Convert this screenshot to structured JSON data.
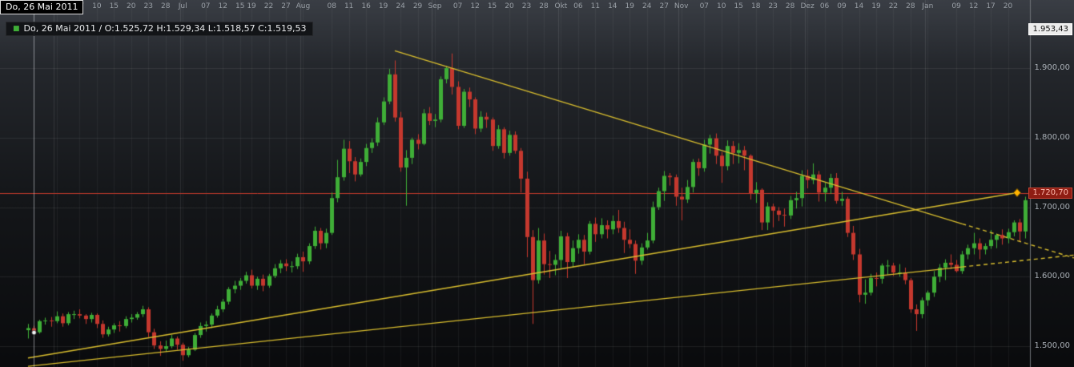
{
  "header": {
    "tooltip_date": "Do, 26 Mai 2011",
    "info_marker": "■",
    "info_text": "Do, 26 Mai 2011 / O:1.525,72 H:1.529,34 L:1.518,57 C:1.519,53"
  },
  "chart_data": {
    "type": "candlestick",
    "title": "",
    "grid": true,
    "view_price_range": [
      1470,
      1998
    ],
    "price_axis": {
      "labels": [
        {
          "v": 1900,
          "t": "1.900,00"
        },
        {
          "v": 1800,
          "t": "1.800,00"
        },
        {
          "v": 1700,
          "t": "1.700,00"
        },
        {
          "v": 1600,
          "t": "1.600,00"
        },
        {
          "v": 1500,
          "t": "1.500,00"
        }
      ]
    },
    "time_axis": {
      "month_start_indices": [
        5,
        27,
        48,
        71,
        93,
        114,
        136,
        157
      ],
      "labels": [
        {
          "i": 5,
          "t": "Jun"
        },
        {
          "i": 9,
          "t": "07"
        },
        {
          "i": 12,
          "t": "10"
        },
        {
          "i": 15,
          "t": "15"
        },
        {
          "i": 18,
          "t": "20"
        },
        {
          "i": 21,
          "t": "23"
        },
        {
          "i": 24,
          "t": "28"
        },
        {
          "i": 27,
          "t": "Jul"
        },
        {
          "i": 31,
          "t": "07"
        },
        {
          "i": 34,
          "t": "12"
        },
        {
          "i": 37,
          "t": "15"
        },
        {
          "i": 39,
          "t": "19"
        },
        {
          "i": 42,
          "t": "22"
        },
        {
          "i": 45,
          "t": "27"
        },
        {
          "i": 48,
          "t": "Aug"
        },
        {
          "i": 53,
          "t": "08"
        },
        {
          "i": 56,
          "t": "11"
        },
        {
          "i": 59,
          "t": "16"
        },
        {
          "i": 62,
          "t": "19"
        },
        {
          "i": 65,
          "t": "24"
        },
        {
          "i": 68,
          "t": "29"
        },
        {
          "i": 71,
          "t": "Sep"
        },
        {
          "i": 75,
          "t": "07"
        },
        {
          "i": 78,
          "t": "12"
        },
        {
          "i": 81,
          "t": "15"
        },
        {
          "i": 84,
          "t": "20"
        },
        {
          "i": 87,
          "t": "23"
        },
        {
          "i": 90,
          "t": "28"
        },
        {
          "i": 93,
          "t": "Okt"
        },
        {
          "i": 96,
          "t": "06"
        },
        {
          "i": 99,
          "t": "11"
        },
        {
          "i": 102,
          "t": "14"
        },
        {
          "i": 105,
          "t": "19"
        },
        {
          "i": 108,
          "t": "24"
        },
        {
          "i": 111,
          "t": "27"
        },
        {
          "i": 114,
          "t": "Nov"
        },
        {
          "i": 118,
          "t": "07"
        },
        {
          "i": 121,
          "t": "10"
        },
        {
          "i": 124,
          "t": "15"
        },
        {
          "i": 127,
          "t": "18"
        },
        {
          "i": 130,
          "t": "23"
        },
        {
          "i": 133,
          "t": "28"
        },
        {
          "i": 136,
          "t": "Dez"
        },
        {
          "i": 139,
          "t": "06"
        },
        {
          "i": 142,
          "t": "09"
        },
        {
          "i": 145,
          "t": "14"
        },
        {
          "i": 148,
          "t": "19"
        },
        {
          "i": 151,
          "t": "22"
        },
        {
          "i": 154,
          "t": "28"
        },
        {
          "i": 157,
          "t": "Jan"
        },
        {
          "i": 162,
          "t": "09"
        },
        {
          "i": 165,
          "t": "12"
        },
        {
          "i": 168,
          "t": "17"
        },
        {
          "i": 171,
          "t": "20"
        }
      ]
    },
    "candles": [
      [
        1523,
        1532,
        1511,
        1526
      ],
      [
        1525.7,
        1529.3,
        1518.6,
        1519.5
      ],
      [
        1520,
        1538,
        1518,
        1536
      ],
      [
        1536,
        1541,
        1531,
        1537
      ],
      [
        1537,
        1542,
        1528,
        1536
      ],
      [
        1536,
        1550,
        1533,
        1543
      ],
      [
        1543,
        1547,
        1528,
        1533
      ],
      [
        1533,
        1549,
        1530,
        1546
      ],
      [
        1546,
        1551,
        1539,
        1546
      ],
      [
        1546,
        1553,
        1540,
        1544
      ],
      [
        1544,
        1546,
        1532,
        1539
      ],
      [
        1539,
        1548,
        1534,
        1545
      ],
      [
        1545,
        1547,
        1526,
        1532
      ],
      [
        1532,
        1537,
        1512,
        1517
      ],
      [
        1517,
        1528,
        1514,
        1524
      ],
      [
        1524,
        1533,
        1519,
        1530
      ],
      [
        1530,
        1536,
        1521,
        1529
      ],
      [
        1529,
        1543,
        1526,
        1539
      ],
      [
        1539,
        1546,
        1534,
        1541
      ],
      [
        1541,
        1549,
        1538,
        1546
      ],
      [
        1546,
        1558,
        1542,
        1553
      ],
      [
        1553,
        1556,
        1513,
        1520
      ],
      [
        1520,
        1525,
        1496,
        1501
      ],
      [
        1501,
        1507,
        1486,
        1496
      ],
      [
        1496,
        1508,
        1492,
        1500
      ],
      [
        1500,
        1516,
        1497,
        1511
      ],
      [
        1511,
        1514,
        1495,
        1502
      ],
      [
        1502,
        1505,
        1479,
        1487
      ],
      [
        1487,
        1499,
        1484,
        1495
      ],
      [
        1495,
        1519,
        1493,
        1516
      ],
      [
        1516,
        1534,
        1512,
        1529
      ],
      [
        1529,
        1536,
        1521,
        1531
      ],
      [
        1531,
        1547,
        1526,
        1544
      ],
      [
        1544,
        1558,
        1541,
        1553
      ],
      [
        1553,
        1568,
        1549,
        1564
      ],
      [
        1564,
        1585,
        1560,
        1582
      ],
      [
        1582,
        1594,
        1576,
        1587
      ],
      [
        1587,
        1598,
        1581,
        1594
      ],
      [
        1594,
        1607,
        1590,
        1602
      ],
      [
        1602,
        1610,
        1583,
        1587
      ],
      [
        1587,
        1600,
        1581,
        1597
      ],
      [
        1597,
        1603,
        1579,
        1587
      ],
      [
        1587,
        1604,
        1584,
        1601
      ],
      [
        1601,
        1618,
        1598,
        1612
      ],
      [
        1612,
        1624,
        1605,
        1619
      ],
      [
        1619,
        1625,
        1608,
        1615
      ],
      [
        1615,
        1622,
        1606,
        1615
      ],
      [
        1615,
        1633,
        1611,
        1628
      ],
      [
        1628,
        1636,
        1607,
        1622
      ],
      [
        1622,
        1648,
        1618,
        1644
      ],
      [
        1644,
        1672,
        1640,
        1666
      ],
      [
        1666,
        1670,
        1639,
        1648
      ],
      [
        1648,
        1669,
        1641,
        1663
      ],
      [
        1663,
        1721,
        1660,
        1713
      ],
      [
        1713,
        1768,
        1707,
        1743
      ],
      [
        1743,
        1797,
        1738,
        1784
      ],
      [
        1784,
        1795,
        1749,
        1766
      ],
      [
        1766,
        1772,
        1737,
        1747
      ],
      [
        1747,
        1770,
        1744,
        1765
      ],
      [
        1765,
        1791,
        1759,
        1785
      ],
      [
        1785,
        1799,
        1778,
        1793
      ],
      [
        1793,
        1829,
        1788,
        1822
      ],
      [
        1822,
        1858,
        1818,
        1852
      ],
      [
        1852,
        1899,
        1848,
        1891
      ],
      [
        1891,
        1911,
        1823,
        1829
      ],
      [
        1829,
        1837,
        1751,
        1757
      ],
      [
        1757,
        1782,
        1702,
        1771
      ],
      [
        1771,
        1800,
        1762,
        1797
      ],
      [
        1797,
        1805,
        1783,
        1791
      ],
      [
        1791,
        1841,
        1789,
        1835
      ],
      [
        1835,
        1844,
        1818,
        1824
      ],
      [
        1824,
        1834,
        1815,
        1826
      ],
      [
        1826,
        1888,
        1822,
        1884
      ],
      [
        1884,
        1903,
        1878,
        1900
      ],
      [
        1900,
        1921,
        1862,
        1873
      ],
      [
        1873,
        1881,
        1812,
        1817
      ],
      [
        1817,
        1870,
        1814,
        1866
      ],
      [
        1866,
        1872,
        1844,
        1855
      ],
      [
        1855,
        1858,
        1805,
        1813
      ],
      [
        1813,
        1838,
        1808,
        1830
      ],
      [
        1830,
        1836,
        1814,
        1826
      ],
      [
        1826,
        1829,
        1781,
        1788
      ],
      [
        1788,
        1818,
        1784,
        1812
      ],
      [
        1812,
        1815,
        1770,
        1778
      ],
      [
        1778,
        1810,
        1774,
        1804
      ],
      [
        1804,
        1809,
        1777,
        1781
      ],
      [
        1781,
        1785,
        1721,
        1741
      ],
      [
        1741,
        1751,
        1628,
        1657
      ],
      [
        1657,
        1667,
        1532,
        1595
      ],
      [
        1595,
        1670,
        1590,
        1652
      ],
      [
        1652,
        1662,
        1603,
        1618
      ],
      [
        1618,
        1637,
        1598,
        1617
      ],
      [
        1617,
        1632,
        1602,
        1624
      ],
      [
        1624,
        1666,
        1612,
        1658
      ],
      [
        1658,
        1663,
        1598,
        1621
      ],
      [
        1621,
        1652,
        1613,
        1641
      ],
      [
        1641,
        1661,
        1633,
        1653
      ],
      [
        1653,
        1660,
        1618,
        1636
      ],
      [
        1636,
        1680,
        1632,
        1676
      ],
      [
        1676,
        1685,
        1650,
        1661
      ],
      [
        1661,
        1684,
        1655,
        1674
      ],
      [
        1674,
        1681,
        1655,
        1668
      ],
      [
        1668,
        1688,
        1661,
        1680
      ],
      [
        1680,
        1696,
        1663,
        1670
      ],
      [
        1670,
        1679,
        1634,
        1653
      ],
      [
        1653,
        1668,
        1641,
        1647
      ],
      [
        1647,
        1652,
        1604,
        1623
      ],
      [
        1623,
        1648,
        1617,
        1642
      ],
      [
        1642,
        1663,
        1639,
        1652
      ],
      [
        1652,
        1708,
        1648,
        1700
      ],
      [
        1700,
        1728,
        1696,
        1723
      ],
      [
        1723,
        1752,
        1709,
        1745
      ],
      [
        1745,
        1749,
        1731,
        1743
      ],
      [
        1743,
        1747,
        1702,
        1715
      ],
      [
        1715,
        1728,
        1681,
        1711
      ],
      [
        1711,
        1739,
        1706,
        1729
      ],
      [
        1729,
        1769,
        1721,
        1765
      ],
      [
        1765,
        1770,
        1745,
        1756
      ],
      [
        1756,
        1797,
        1751,
        1790
      ],
      [
        1790,
        1804,
        1777,
        1799
      ],
      [
        1799,
        1806,
        1762,
        1774
      ],
      [
        1774,
        1779,
        1735,
        1759
      ],
      [
        1759,
        1796,
        1753,
        1788
      ],
      [
        1788,
        1795,
        1762,
        1778
      ],
      [
        1778,
        1792,
        1763,
        1782
      ],
      [
        1782,
        1788,
        1753,
        1774
      ],
      [
        1774,
        1776,
        1711,
        1720
      ],
      [
        1720,
        1736,
        1706,
        1725
      ],
      [
        1725,
        1727,
        1667,
        1678
      ],
      [
        1678,
        1707,
        1667,
        1701
      ],
      [
        1701,
        1705,
        1671,
        1695
      ],
      [
        1695,
        1700,
        1680,
        1689
      ],
      [
        1689,
        1698,
        1672,
        1688
      ],
      [
        1688,
        1716,
        1683,
        1710
      ],
      [
        1710,
        1722,
        1698,
        1713
      ],
      [
        1713,
        1753,
        1701,
        1745
      ],
      [
        1745,
        1754,
        1727,
        1739
      ],
      [
        1739,
        1763,
        1733,
        1747
      ],
      [
        1747,
        1752,
        1708,
        1721
      ],
      [
        1721,
        1735,
        1708,
        1728
      ],
      [
        1728,
        1748,
        1719,
        1742
      ],
      [
        1742,
        1749,
        1705,
        1709
      ],
      [
        1709,
        1722,
        1702,
        1712
      ],
      [
        1712,
        1715,
        1657,
        1663
      ],
      [
        1663,
        1673,
        1624,
        1632
      ],
      [
        1632,
        1640,
        1563,
        1574
      ],
      [
        1574,
        1596,
        1561,
        1577
      ],
      [
        1577,
        1604,
        1573,
        1598
      ],
      [
        1598,
        1606,
        1586,
        1597
      ],
      [
        1597,
        1619,
        1590,
        1616
      ],
      [
        1616,
        1624,
        1603,
        1616
      ],
      [
        1616,
        1620,
        1601,
        1606
      ],
      [
        1606,
        1618,
        1600,
        1606
      ],
      [
        1606,
        1613,
        1589,
        1595
      ],
      [
        1595,
        1598,
        1548,
        1553
      ],
      [
        1553,
        1560,
        1522,
        1546
      ],
      [
        1546,
        1570,
        1540,
        1566
      ],
      [
        1566,
        1580,
        1558,
        1577
      ],
      [
        1577,
        1608,
        1571,
        1600
      ],
      [
        1600,
        1618,
        1592,
        1613
      ],
      [
        1613,
        1625,
        1595,
        1620
      ],
      [
        1620,
        1632,
        1611,
        1617
      ],
      [
        1617,
        1624,
        1606,
        1608
      ],
      [
        1608,
        1637,
        1604,
        1632
      ],
      [
        1632,
        1646,
        1625,
        1641
      ],
      [
        1641,
        1663,
        1632,
        1648
      ],
      [
        1648,
        1655,
        1625,
        1639
      ],
      [
        1639,
        1648,
        1632,
        1644
      ],
      [
        1644,
        1667,
        1640,
        1653
      ],
      [
        1653,
        1662,
        1641,
        1660
      ],
      [
        1660,
        1668,
        1646,
        1655
      ],
      [
        1655,
        1669,
        1648,
        1664
      ],
      [
        1664,
        1681,
        1658,
        1678
      ],
      [
        1678,
        1683,
        1650,
        1665
      ],
      [
        1665,
        1715,
        1655,
        1710
      ]
    ],
    "trendlines": [
      {
        "i1": 64,
        "p1": 1925,
        "i2": 163,
        "p2": 1676,
        "dashed": false
      },
      {
        "i1": 163,
        "p1": 1676,
        "i2": 182.5,
        "p2": 1627,
        "dashed": true
      },
      {
        "i1": 0,
        "p1": 1483,
        "i2": 172.6,
        "p2": 1720.7,
        "dashed": false
      },
      {
        "i1": 0,
        "p1": 1471,
        "i2": 163,
        "p2": 1614,
        "dashed": false
      },
      {
        "i1": 163,
        "p1": 1614,
        "i2": 182.5,
        "p2": 1631,
        "dashed": true
      }
    ],
    "alert_line": {
      "price": 1720.7,
      "label": "1.720,70"
    },
    "high_marker": {
      "price": 1953.43,
      "text": "1.953,43"
    },
    "crosshair": {
      "index": 1,
      "price": 1519.53
    },
    "end_marker": {
      "index": 172.6,
      "price": 1720.7,
      "shape": "diamond"
    },
    "colors": {
      "up": "#3fae37",
      "down": "#c5382e",
      "trend": "#d8bd2e",
      "alert_line": "#c0392b",
      "marker_fill": "#ffb400",
      "marker_stroke": "#6e4e00",
      "axis_separator": "#6f7378"
    }
  }
}
